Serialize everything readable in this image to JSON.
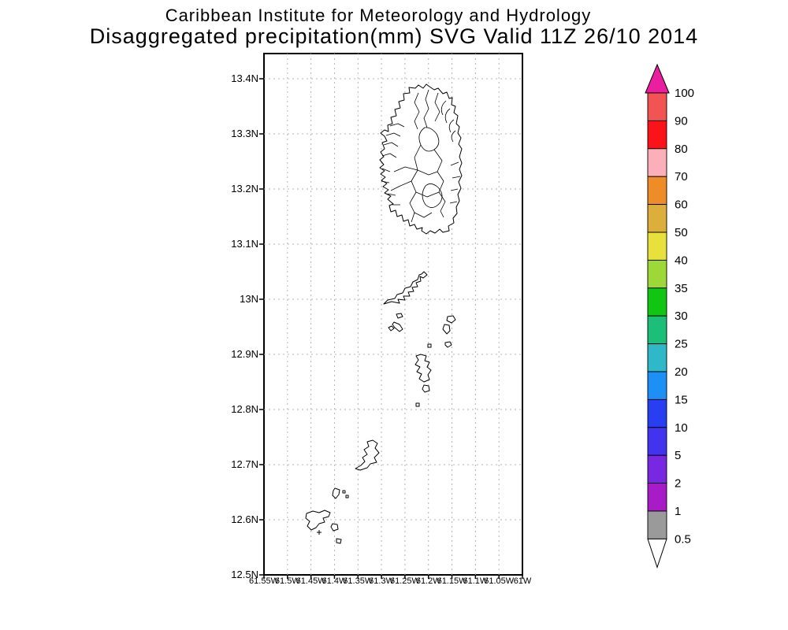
{
  "title": {
    "line1": "Caribbean Institute for Meteorology and Hydrology",
    "line2": "Disaggregated precipitation(mm) SVG Valid 11Z 26/10 2014"
  },
  "map": {
    "lat_labels": [
      "13.4N",
      "13.3N",
      "13.2N",
      "13.1N",
      "13N",
      "12.9N",
      "12.8N",
      "12.7N",
      "12.6N",
      "12.5N"
    ],
    "lon_labels": [
      "61.55W",
      "61.5W",
      "61.45W",
      "61.4W",
      "61.35W",
      "61.3W",
      "61.25W",
      "61.2W",
      "61.15W",
      "61.1W",
      "61.05W",
      "61W"
    ],
    "grid_color": "#b4b4b4",
    "frame_color": "#000000",
    "coastline_color": "#000000"
  },
  "colorbar": {
    "tick_labels": [
      "100",
      "90",
      "80",
      "70",
      "60",
      "50",
      "40",
      "35",
      "30",
      "25",
      "20",
      "15",
      "10",
      "5",
      "2",
      "1",
      "0.5"
    ],
    "segment_colors_top_to_bottom": [
      "#F25353",
      "#FA1419",
      "#FAAFB9",
      "#EE8C28",
      "#DCAE3C",
      "#E8E03C",
      "#9ED838",
      "#12C513",
      "#1DBE78",
      "#2EB8C8",
      "#1E90F5",
      "#273FF0",
      "#4133EE",
      "#7828E0",
      "#A81CC8",
      "#9A9A9A"
    ],
    "above_max_color": "#EA1E9E",
    "below_min_color": "#FFFFFF"
  }
}
